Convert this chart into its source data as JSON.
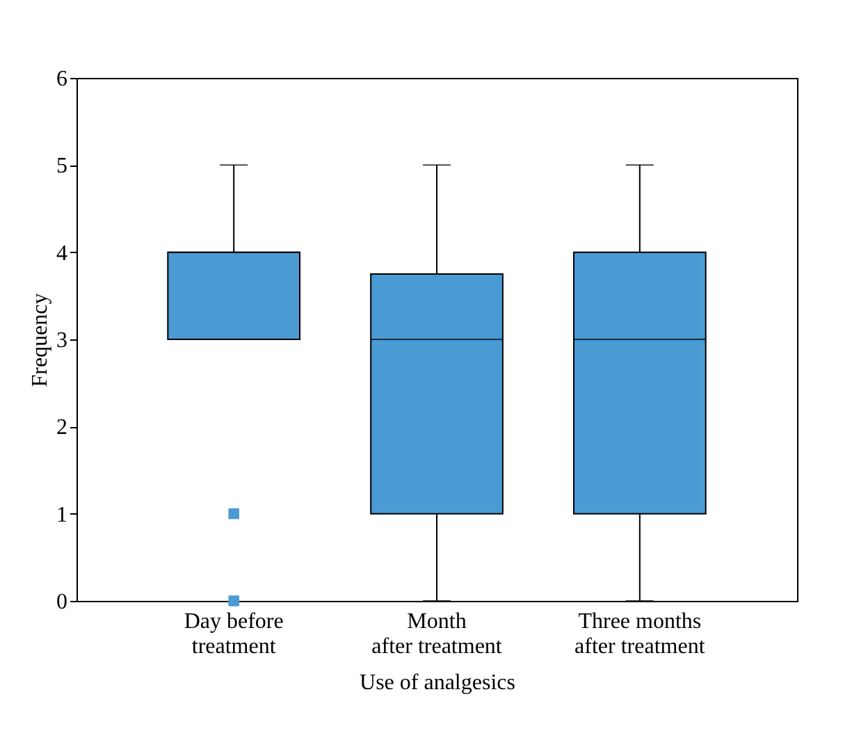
{
  "chart_data": {
    "type": "box",
    "xlabel": "Use of analgesics",
    "ylabel": "Frequency",
    "categories": [
      "Day before\ntreatment",
      "Month\nafter treatment",
      "Three months\nafter treatment"
    ],
    "ylim": [
      0,
      6
    ],
    "yticks": [
      0,
      1,
      2,
      3,
      4,
      5,
      6
    ],
    "marker": "square",
    "series": [
      {
        "color": "#4a9ad4",
        "boxes": [
          {
            "low": 3,
            "q1": 3,
            "median": 4,
            "q3": 4,
            "high": 5,
            "outliers": [
              1,
              0
            ]
          },
          {
            "low": 0,
            "q1": 1,
            "median": 3,
            "q3": 3.75,
            "high": 5
          },
          {
            "low": 0,
            "q1": 1,
            "median": 3,
            "q3": 4,
            "high": 5
          }
        ]
      }
    ]
  }
}
